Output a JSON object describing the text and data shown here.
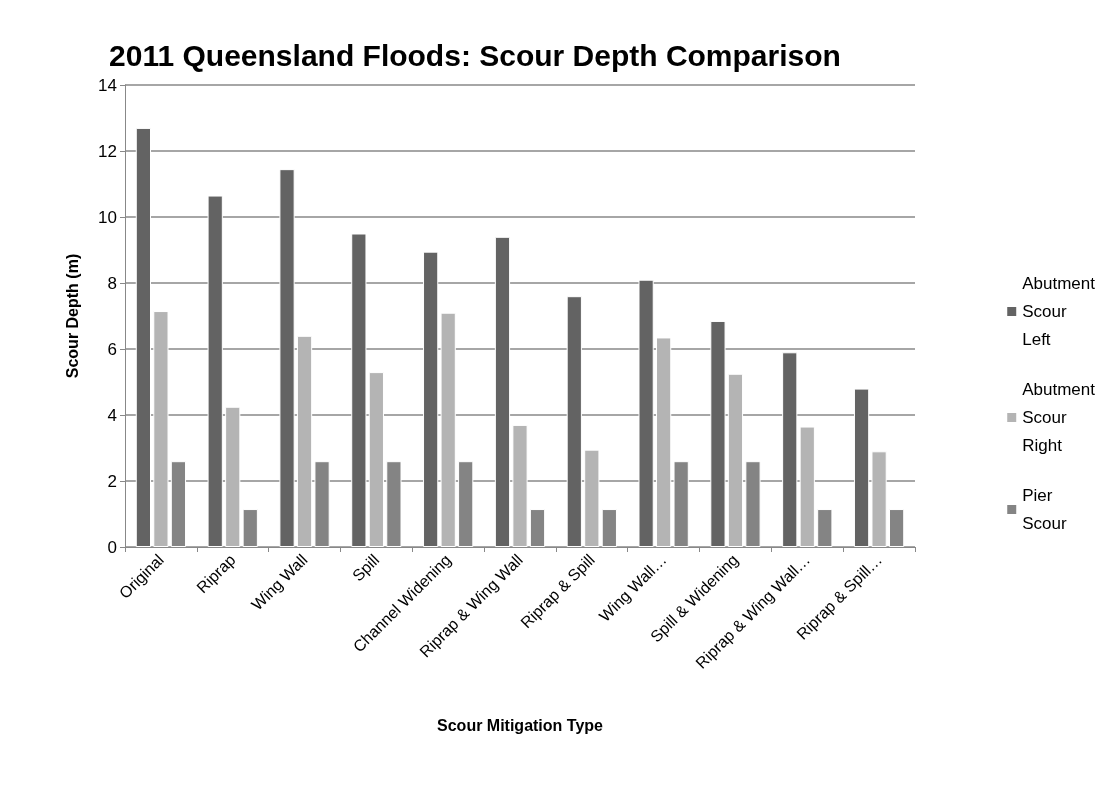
{
  "chart_data": {
    "type": "bar",
    "title": "2011 Queensland Floods: Scour Depth Comparison",
    "xlabel": "Scour Mitigation Type",
    "ylabel": "Scour Depth (m)",
    "categories": [
      "Original",
      "Riprap",
      "Wing Wall",
      "Spill",
      "Channel Widening",
      "Riprap & Wing Wall",
      "Riprap & Spill",
      "Wing Wall…",
      "Spill & Widening",
      "Riprap & Wing Wall…",
      "Riprap & Spill…"
    ],
    "series": [
      {
        "name": "Abutment Scour Left",
        "color": "#636363",
        "values": [
          12.7,
          10.65,
          11.45,
          9.5,
          8.95,
          9.4,
          7.6,
          8.1,
          6.85,
          5.9,
          4.8
        ]
      },
      {
        "name": "Abutment Scour Right",
        "color": "#b4b4b4",
        "values": [
          7.15,
          4.25,
          6.4,
          5.3,
          7.1,
          3.7,
          2.95,
          6.35,
          5.25,
          3.65,
          2.9
        ]
      },
      {
        "name": "Pier Scour",
        "color": "#848484",
        "values": [
          2.6,
          1.15,
          2.6,
          2.6,
          2.6,
          1.15,
          1.15,
          2.6,
          2.6,
          1.15,
          1.15
        ]
      }
    ],
    "ylim": [
      0,
      14
    ],
    "yticks": [
      0,
      2,
      4,
      6,
      8,
      10,
      12,
      14
    ],
    "grid": "y",
    "legend": "right"
  }
}
